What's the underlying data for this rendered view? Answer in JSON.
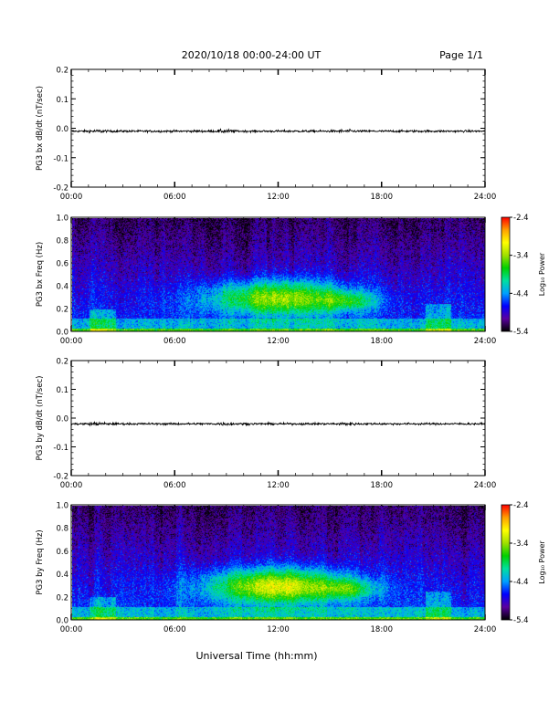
{
  "header": {
    "title": "2020/10/18  00:00-24:00 UT",
    "page_label": "Page 1/1"
  },
  "footer": {
    "xlabel": "Universal Time (hh:mm)"
  },
  "colorbar": {
    "label": "Log₁₀ Power",
    "ticks": [
      "-2.4",
      "-3.4",
      "-4.4",
      "-5.4"
    ],
    "range": [
      -5.4,
      -2.4
    ],
    "colors": [
      "#000000",
      "#5a00a0",
      "#0000ff",
      "#00a0ff",
      "#00e0a0",
      "#00d000",
      "#a0e000",
      "#ffff00",
      "#ffa000",
      "#ff0000"
    ]
  },
  "chart_data": [
    {
      "type": "line",
      "ylabel": "PG3 bx dB/dt (nT/sec)",
      "ylim": [
        -0.2,
        0.2
      ],
      "yticks": [
        "0.2",
        "0.1",
        "0.0",
        "-0.1",
        "-0.2"
      ],
      "xticks": [
        "00:00",
        "06:00",
        "12:00",
        "18:00",
        "24:00"
      ],
      "xlim": [
        0,
        24
      ],
      "series": [
        {
          "baseline": -0.01,
          "amplitude": 0.006
        }
      ]
    },
    {
      "type": "heatmap",
      "ylabel": "PG3 bx Freq (Hz)",
      "ylim": [
        0.0,
        1.0
      ],
      "yticks": [
        "1.0",
        "0.8",
        "0.6",
        "0.4",
        "0.2",
        "0.0"
      ],
      "xticks": [
        "00:00",
        "06:00",
        "12:00",
        "18:00",
        "24:00"
      ],
      "xlim": [
        0,
        24
      ],
      "enhancement": {
        "center_hour": 12,
        "center_freq": 0.3,
        "peak_log_power": -3.4
      }
    },
    {
      "type": "line",
      "ylabel": "PG3 by dB/dt (nT/sec)",
      "ylim": [
        -0.2,
        0.2
      ],
      "yticks": [
        "0.2",
        "0.1",
        "0.0",
        "-0.1",
        "-0.2"
      ],
      "xticks": [
        "00:00",
        "06:00",
        "12:00",
        "18:00",
        "24:00"
      ],
      "xlim": [
        0,
        24
      ],
      "series": [
        {
          "baseline": -0.02,
          "amplitude": 0.006
        }
      ]
    },
    {
      "type": "heatmap",
      "ylabel": "PG3 by Freq (Hz)",
      "ylim": [
        0.0,
        1.0
      ],
      "yticks": [
        "1.0",
        "0.8",
        "0.6",
        "0.4",
        "0.2",
        "0.0"
      ],
      "xticks": [
        "00:00",
        "06:00",
        "12:00",
        "18:00",
        "24:00"
      ],
      "xlim": [
        0,
        24
      ],
      "enhancement": {
        "center_hour": 12,
        "center_freq": 0.3,
        "peak_log_power": -3.2
      }
    }
  ]
}
